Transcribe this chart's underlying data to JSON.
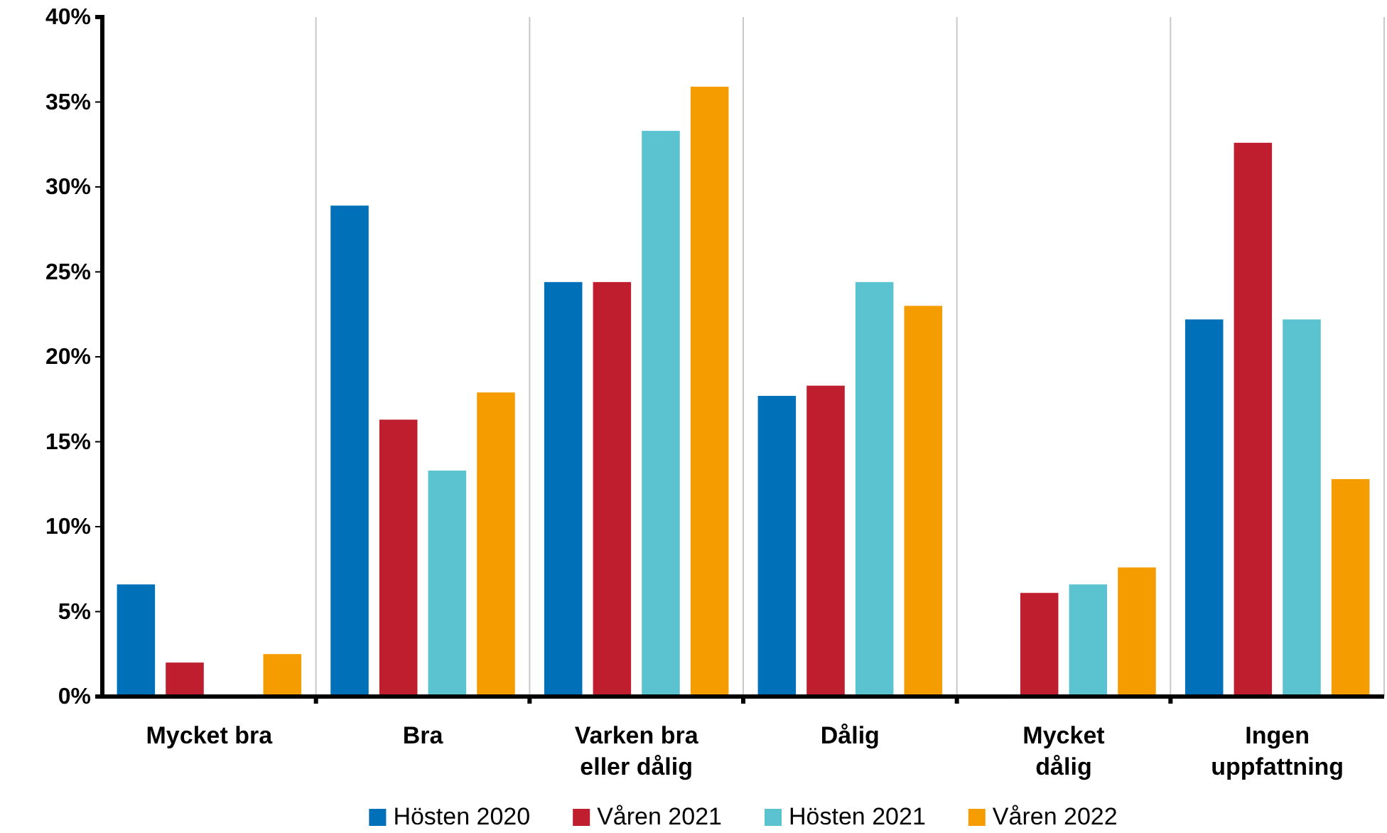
{
  "chart_data": {
    "type": "bar",
    "categories": [
      "Mycket bra",
      "Bra",
      "Varken bra eller dålig",
      "Dålig",
      "Mycket dålig",
      "Ingen uppfattning"
    ],
    "series": [
      {
        "name": "Hösten 2020",
        "color": "#0070b8",
        "values": [
          6.6,
          28.9,
          24.4,
          17.7,
          0,
          22.2
        ]
      },
      {
        "name": "Våren 2021",
        "color": "#be1e2d",
        "values": [
          2.0,
          16.3,
          24.4,
          18.3,
          6.1,
          32.6
        ]
      },
      {
        "name": "Hösten 2021",
        "color": "#5bc2d0",
        "values": [
          0,
          13.3,
          33.3,
          24.4,
          6.6,
          22.2
        ]
      },
      {
        "name": "Våren 2022",
        "color": "#f59c00",
        "values": [
          2.5,
          17.9,
          35.9,
          23.0,
          7.6,
          12.8
        ]
      }
    ],
    "ylim": [
      0,
      40
    ],
    "yticks": [
      {
        "value": 0,
        "label": "0%"
      },
      {
        "value": 5,
        "label": "5%"
      },
      {
        "value": 10,
        "label": "10%"
      },
      {
        "value": 15,
        "label": "15%"
      },
      {
        "value": 20,
        "label": "20%"
      },
      {
        "value": 25,
        "label": "25%"
      },
      {
        "value": 30,
        "label": "30%"
      },
      {
        "value": 35,
        "label": "35%"
      },
      {
        "value": 40,
        "label": "40%"
      }
    ],
    "grid": "x",
    "legend": "bottom"
  }
}
